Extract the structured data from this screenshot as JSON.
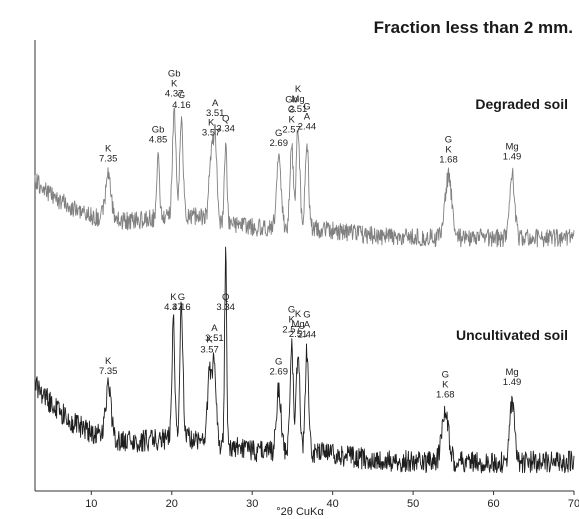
{
  "chart_data": {
    "type": "line",
    "title": "Fraction less than 2 mm.",
    "xlabel": "°2θ CuKα",
    "ylabel": "",
    "xlim": [
      3,
      70
    ],
    "xticks": [
      10,
      20,
      30,
      40,
      50,
      60,
      70
    ],
    "grid": false,
    "colors": {
      "degraded": "#808080",
      "uncultivated": "#1e1e1e",
      "axis": "#333333"
    },
    "series": [
      {
        "name": "Degraded soil",
        "key": "degraded",
        "peaks": [
          {
            "x": 12.1,
            "h": 0.26,
            "w": 0.5,
            "labels": [
              "K",
              "7.35"
            ]
          },
          {
            "x": 18.3,
            "h": 0.36,
            "w": 0.25,
            "labels": [
              "Gb",
              "4.85"
            ]
          },
          {
            "x": 20.3,
            "h": 0.62,
            "w": 0.3,
            "labels": [
              "Gb",
              "K",
              "4.37"
            ]
          },
          {
            "x": 21.2,
            "h": 0.55,
            "w": 0.3,
            "labels": [
              "G",
              "4.16"
            ]
          },
          {
            "x": 24.9,
            "h": 0.38,
            "w": 0.35,
            "labels": [
              "K",
              "3.57"
            ]
          },
          {
            "x": 25.4,
            "h": 0.48,
            "w": 0.3,
            "labels": [
              "A",
              "3.51"
            ]
          },
          {
            "x": 26.7,
            "h": 0.45,
            "w": 0.22,
            "labels": [
              "Q",
              "3.34"
            ]
          },
          {
            "x": 33.3,
            "h": 0.4,
            "w": 0.4,
            "labels": [
              "G",
              "2.69"
            ]
          },
          {
            "x": 34.9,
            "h": 0.48,
            "w": 0.3,
            "labels": [
              "Gb",
              "G",
              "K",
              "2.57"
            ]
          },
          {
            "x": 35.7,
            "h": 0.6,
            "w": 0.3,
            "labels": [
              "K",
              "Mg",
              "2.51"
            ]
          },
          {
            "x": 36.8,
            "h": 0.5,
            "w": 0.3,
            "labels": [
              "G",
              "A",
              "2.44"
            ]
          },
          {
            "x": 54.4,
            "h": 0.36,
            "w": 0.6,
            "labels": [
              "G",
              "K",
              "1.68"
            ]
          },
          {
            "x": 62.3,
            "h": 0.38,
            "w": 0.45,
            "labels": [
              "Mg",
              "1.49"
            ]
          }
        ]
      },
      {
        "name": "Uncultivated soil",
        "key": "uncultivated",
        "peaks": [
          {
            "x": 12.1,
            "h": 0.24,
            "w": 0.5,
            "labels": [
              "K",
              "7.35"
            ]
          },
          {
            "x": 20.2,
            "h": 0.55,
            "w": 0.25,
            "labels": [
              "K",
              "4.37"
            ]
          },
          {
            "x": 21.2,
            "h": 0.62,
            "w": 0.28,
            "labels": [
              "G",
              "4.16"
            ]
          },
          {
            "x": 24.7,
            "h": 0.35,
            "w": 0.35,
            "labels": [
              "K",
              "3.57"
            ]
          },
          {
            "x": 25.3,
            "h": 0.4,
            "w": 0.3,
            "labels": [
              "A",
              "3.51"
            ]
          },
          {
            "x": 26.7,
            "h": 0.9,
            "w": 0.18,
            "labels": [
              "Q",
              "3.34"
            ]
          },
          {
            "x": 33.3,
            "h": 0.3,
            "w": 0.4,
            "labels": [
              "G",
              "2.69"
            ]
          },
          {
            "x": 34.9,
            "h": 0.5,
            "w": 0.3,
            "labels": [
              "G",
              "K",
              "2.57"
            ]
          },
          {
            "x": 35.7,
            "h": 0.48,
            "w": 0.3,
            "labels": [
              "K",
              "Mg",
              "2.51"
            ]
          },
          {
            "x": 36.8,
            "h": 0.48,
            "w": 0.3,
            "labels": [
              "G",
              "A",
              "2.44"
            ]
          },
          {
            "x": 54.0,
            "h": 0.24,
            "w": 0.6,
            "labels": [
              "G",
              "K",
              "1.68"
            ]
          },
          {
            "x": 62.3,
            "h": 0.3,
            "w": 0.4,
            "labels": [
              "Mg",
              "1.49"
            ]
          }
        ]
      }
    ]
  }
}
